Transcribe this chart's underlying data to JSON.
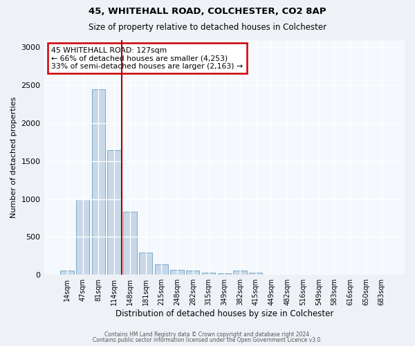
{
  "title1": "45, WHITEHALL ROAD, COLCHESTER, CO2 8AP",
  "title2": "Size of property relative to detached houses in Colchester",
  "xlabel": "Distribution of detached houses by size in Colchester",
  "ylabel": "Number of detached properties",
  "bar_labels": [
    "14sqm",
    "47sqm",
    "81sqm",
    "114sqm",
    "148sqm",
    "181sqm",
    "215sqm",
    "248sqm",
    "282sqm",
    "315sqm",
    "349sqm",
    "382sqm",
    "415sqm",
    "449sqm",
    "482sqm",
    "516sqm",
    "549sqm",
    "583sqm",
    "616sqm",
    "650sqm",
    "683sqm"
  ],
  "bar_values": [
    60,
    1000,
    2450,
    1640,
    830,
    295,
    140,
    65,
    55,
    30,
    20,
    60,
    30,
    0,
    0,
    0,
    0,
    0,
    0,
    0,
    0
  ],
  "bar_color": "#c8d8e8",
  "bar_edge_color": "#7aaac8",
  "vline_x": 3.5,
  "vline_color": "#aa0000",
  "annotation_text": "45 WHITEHALL ROAD: 127sqm\n← 66% of detached houses are smaller (4,253)\n33% of semi-detached houses are larger (2,163) →",
  "annotation_box_color": "white",
  "annotation_box_edge_color": "#cc0000",
  "ylim": [
    0,
    3100
  ],
  "yticks": [
    0,
    500,
    1000,
    1500,
    2000,
    2500,
    3000
  ],
  "footer1": "Contains HM Land Registry data © Crown copyright and database right 2024.",
  "footer2": "Contains public sector information licensed under the Open Government Licence v3.0.",
  "bg_color": "#eef2f7",
  "plot_bg_color": "#f5f8fc"
}
